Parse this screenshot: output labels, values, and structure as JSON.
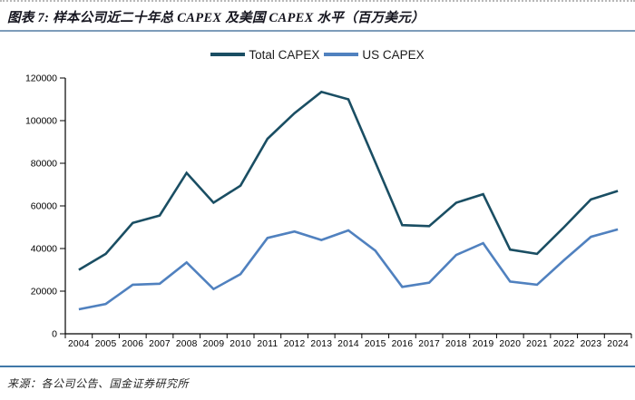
{
  "header": {
    "title": "图表 7: 样本公司近二十年总 CAPEX 及美国 CAPEX 水平（百万美元）"
  },
  "footer": {
    "source": "来源：各公司公告、国金证券研究所"
  },
  "chart_data": {
    "type": "line",
    "title": "样本公司近二十年总 CAPEX 及美国 CAPEX 水平（百万美元）",
    "unit": "百万美元",
    "xlabel": "",
    "ylabel": "",
    "ylim": [
      0,
      120000
    ],
    "ytick_step": 20000,
    "grid": false,
    "legend_position": "top",
    "categories": [
      "2004",
      "2005",
      "2006",
      "2007",
      "2008",
      "2009",
      "2010",
      "2011",
      "2012",
      "2013",
      "2014",
      "2015",
      "2016",
      "2017",
      "2018",
      "2019",
      "2020",
      "2021",
      "2022",
      "2023",
      "2024"
    ],
    "series": [
      {
        "name": "Total CAPEX",
        "color": "#1a4e63",
        "values": [
          30000,
          37500,
          52000,
          55500,
          75500,
          61500,
          69500,
          91500,
          103500,
          113500,
          110000,
          80500,
          51000,
          50500,
          61500,
          65500,
          39500,
          37500,
          50000,
          63000,
          67000
        ]
      },
      {
        "name": "US CAPEX",
        "color": "#5081bf",
        "values": [
          11500,
          14000,
          23000,
          23500,
          33500,
          21000,
          28000,
          45000,
          48000,
          44000,
          48500,
          39000,
          22000,
          24000,
          37000,
          42500,
          24500,
          23000,
          34500,
          45500,
          49000
        ]
      }
    ]
  }
}
